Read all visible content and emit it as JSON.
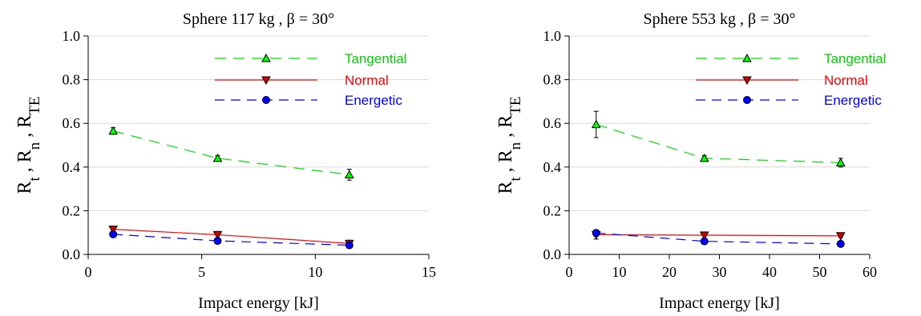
{
  "chart_data": [
    {
      "type": "line",
      "title": "Sphere 117 kg , β = 30°",
      "xlabel": "Impact energy [kJ]",
      "ylabel": {
        "parts": [
          {
            "t": "R",
            "sub": false
          },
          {
            "t": "t",
            "sub": true
          },
          {
            "t": " , R",
            "sub": false
          },
          {
            "t": "n",
            "sub": true
          },
          {
            "t": " , R",
            "sub": false
          },
          {
            "t": "TE",
            "sub": true
          }
        ]
      },
      "xlim": [
        0,
        15
      ],
      "ylim": [
        0,
        1.0
      ],
      "xticks": [
        0,
        5,
        10,
        15
      ],
      "xtick_labels": [
        "0",
        "5",
        "10",
        "15"
      ],
      "yticks": [
        0,
        0.2,
        0.4,
        0.6,
        0.8,
        1.0
      ],
      "ytick_labels": [
        "0.0",
        "0.2",
        "0.4",
        "0.6",
        "0.8",
        "1.0"
      ],
      "grid": "horizontal",
      "legend_position": "top-right",
      "series": [
        {
          "name": "Tangential",
          "color": "#00e000",
          "marker_fill": "#00ff00",
          "dash": "dashed-long",
          "marker": "triangle-up",
          "x": [
            1.1,
            5.7,
            11.5
          ],
          "y": [
            0.565,
            0.44,
            0.365
          ],
          "err": [
            0.015,
            0.012,
            0.025
          ]
        },
        {
          "name": "Normal",
          "color": "#ff0000",
          "marker_fill": "#d00000",
          "dash": "solid",
          "marker": "triangle-down",
          "x": [
            1.1,
            5.7,
            11.5
          ],
          "y": [
            0.115,
            0.09,
            0.05
          ],
          "err": [
            0.012,
            0.015,
            0.015
          ]
        },
        {
          "name": "Energetic",
          "color": "#0000ff",
          "marker_fill": "#0000ff",
          "dash": "dashed",
          "marker": "circle",
          "x": [
            1.1,
            5.7,
            11.5
          ],
          "y": [
            0.092,
            0.062,
            0.042
          ],
          "err": [
            0.008,
            0.006,
            0.008
          ]
        }
      ]
    },
    {
      "type": "line",
      "title": "Sphere 553 kg , β = 30°",
      "xlabel": "Impact energy [kJ]",
      "ylabel": {
        "parts": [
          {
            "t": "R",
            "sub": false
          },
          {
            "t": "t",
            "sub": true
          },
          {
            "t": " , R",
            "sub": false
          },
          {
            "t": "n",
            "sub": true
          },
          {
            "t": " , R",
            "sub": false
          },
          {
            "t": "TE",
            "sub": true
          }
        ]
      },
      "xlim": [
        0,
        60
      ],
      "ylim": [
        0,
        1.0
      ],
      "xticks": [
        0,
        10,
        20,
        30,
        40,
        50,
        60
      ],
      "xtick_labels": [
        "0",
        "10",
        "20",
        "30",
        "40",
        "50",
        "60"
      ],
      "yticks": [
        0,
        0.2,
        0.4,
        0.6,
        0.8,
        1.0
      ],
      "ytick_labels": [
        "0.0",
        "0.2",
        "0.4",
        "0.6",
        "0.8",
        "1.0"
      ],
      "grid": "horizontal",
      "legend_position": "top-right",
      "series": [
        {
          "name": "Tangential",
          "color": "#00e000",
          "marker_fill": "#00ff00",
          "dash": "dashed-long",
          "marker": "triangle-up",
          "x": [
            5.4,
            27.0,
            54.2
          ],
          "y": [
            0.595,
            0.44,
            0.42
          ],
          "err": [
            0.06,
            0.012,
            0.02
          ]
        },
        {
          "name": "Normal",
          "color": "#ff0000",
          "marker_fill": "#d00000",
          "dash": "solid",
          "marker": "triangle-down",
          "x": [
            5.4,
            27.0,
            54.2
          ],
          "y": [
            0.09,
            0.088,
            0.085
          ],
          "err": [
            0.02,
            0.015,
            0.006
          ]
        },
        {
          "name": "Energetic",
          "color": "#0000ff",
          "marker_fill": "#0000ff",
          "dash": "dashed",
          "marker": "circle",
          "x": [
            5.4,
            27.0,
            54.2
          ],
          "y": [
            0.098,
            0.06,
            0.048
          ],
          "err": [
            0.015,
            0.008,
            0.005
          ]
        }
      ]
    }
  ]
}
